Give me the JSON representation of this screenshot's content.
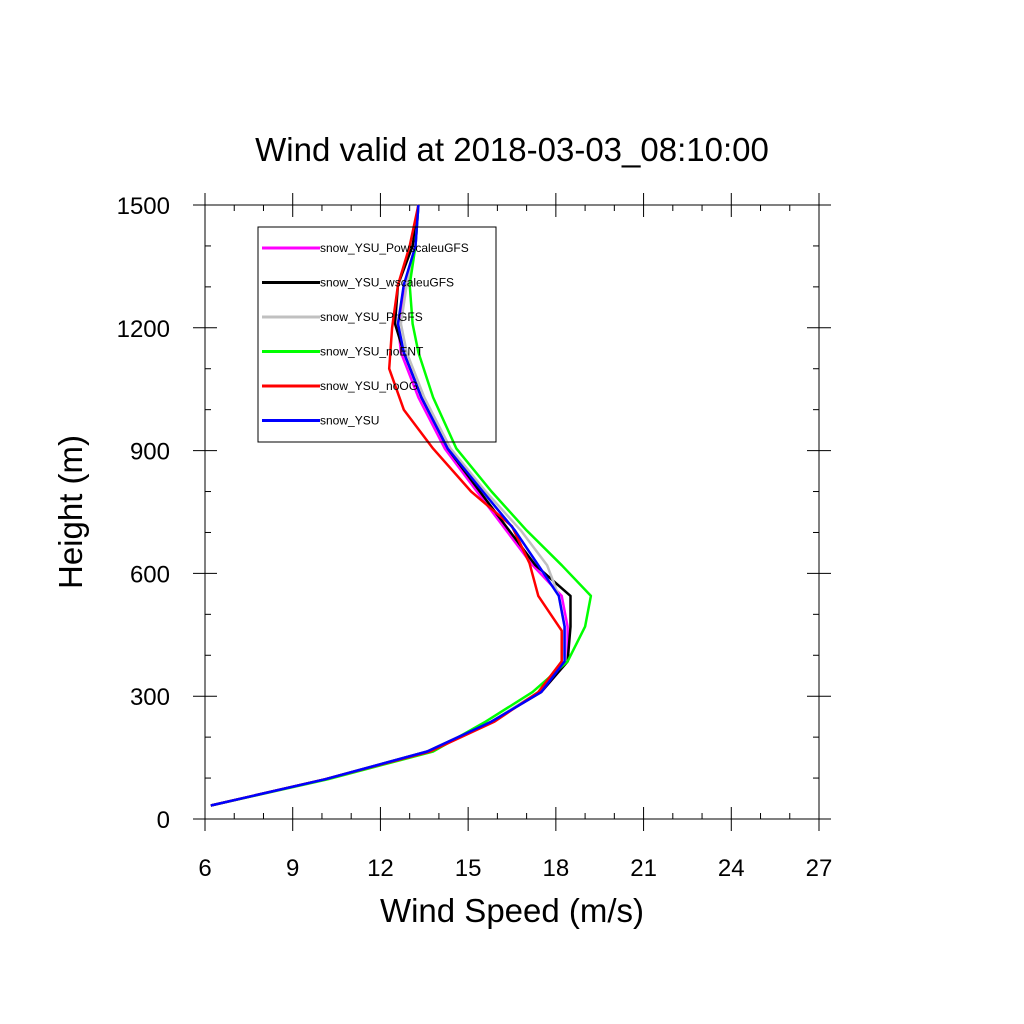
{
  "chart_data": {
    "type": "line",
    "title": "Wind valid at 2018-03-03_08:10:00",
    "xlabel": "Wind Speed (m/s)",
    "ylabel": "Height (m)",
    "xlim": [
      6,
      27
    ],
    "ylim": [
      0,
      1500
    ],
    "xticks": [
      "6",
      "9",
      "12",
      "15",
      "18",
      "21",
      "24",
      "27"
    ],
    "yticks": [
      "0",
      "300",
      "600",
      "900",
      "1200",
      "1500"
    ],
    "legend_position": "top-left",
    "series": [
      {
        "name": "snow_YSU_PowscaleuGFS",
        "color": "#ff00ff",
        "x": [
          6.2,
          10.1,
          13.6,
          15.8,
          17.5,
          18.4,
          18.4,
          18.2,
          17.2,
          16.3,
          15.3,
          14.2,
          13.3,
          12.7,
          12.6,
          12.9,
          13.2,
          13.3
        ],
        "y": [
          33,
          97,
          165,
          238,
          310,
          385,
          470,
          545,
          620,
          705,
          800,
          905,
          1030,
          1140,
          1210,
          1305,
          1400,
          1500
        ]
      },
      {
        "name": "snow_YSU_wscaleuGFS",
        "color": "#000000",
        "x": [
          6.2,
          10.1,
          13.6,
          15.8,
          17.5,
          18.4,
          18.5,
          18.5,
          17.3,
          16.4,
          15.4,
          14.3,
          13.4,
          12.8,
          12.5,
          12.6,
          13.1,
          13.3
        ],
        "y": [
          33,
          97,
          165,
          238,
          310,
          385,
          470,
          545,
          620,
          705,
          800,
          905,
          1030,
          1140,
          1210,
          1305,
          1400,
          1500
        ]
      },
      {
        "name": "snow_YSU_PrGFS",
        "color": "#c0c0c0",
        "x": [
          6.2,
          10.1,
          13.6,
          15.8,
          17.4,
          18.2,
          18.3,
          18.1,
          17.7,
          16.8,
          15.6,
          14.4,
          13.5,
          12.9,
          12.7,
          12.9,
          13.2,
          13.3
        ],
        "y": [
          33,
          97,
          165,
          238,
          310,
          385,
          470,
          545,
          620,
          705,
          800,
          905,
          1030,
          1140,
          1210,
          1305,
          1400,
          1500
        ]
      },
      {
        "name": "snow_YSU_noENT",
        "color": "#00ff00",
        "x": [
          6.2,
          10.2,
          13.8,
          15.6,
          17.2,
          18.4,
          19.0,
          19.2,
          18.2,
          17.0,
          15.8,
          14.6,
          13.8,
          13.3,
          13.1,
          13.0,
          13.2,
          13.3
        ],
        "y": [
          33,
          97,
          165,
          238,
          310,
          385,
          470,
          545,
          620,
          705,
          800,
          905,
          1030,
          1140,
          1210,
          1305,
          1400,
          1500
        ]
      },
      {
        "name": "snow_YSU_noOG",
        "color": "#ff0000",
        "x": [
          6.2,
          10.1,
          13.7,
          15.9,
          17.4,
          18.2,
          18.2,
          17.4,
          17.1,
          16.5,
          15.1,
          13.8,
          12.8,
          12.3,
          12.4,
          12.6,
          13.0,
          13.3
        ],
        "y": [
          33,
          97,
          165,
          238,
          310,
          385,
          460,
          545,
          625,
          715,
          800,
          905,
          1000,
          1100,
          1200,
          1305,
          1400,
          1500
        ]
      },
      {
        "name": "snow_YSU",
        "color": "#0000ff",
        "x": [
          6.2,
          10.1,
          13.6,
          15.8,
          17.5,
          18.3,
          18.3,
          18.1,
          17.4,
          16.6,
          15.5,
          14.3,
          13.4,
          12.8,
          12.6,
          12.8,
          13.2,
          13.3
        ],
        "y": [
          33,
          97,
          165,
          238,
          310,
          385,
          470,
          545,
          620,
          705,
          800,
          905,
          1030,
          1140,
          1210,
          1305,
          1400,
          1500
        ]
      }
    ]
  }
}
